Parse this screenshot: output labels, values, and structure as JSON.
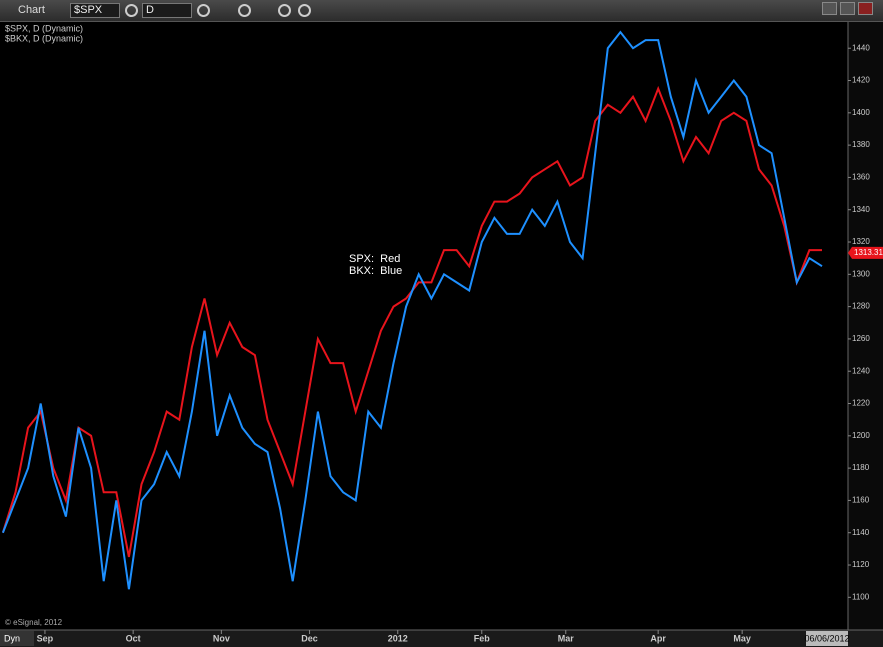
{
  "toolbar": {
    "window_title": "Chart",
    "symbol": "$SPX",
    "interval": "D"
  },
  "chart_data": {
    "type": "line",
    "series_labels": [
      "$SPX, D (Dynamic)",
      "$BKX, D (Dynamic)"
    ],
    "annotations": [
      "SPX:  Red",
      "BKX:  Blue"
    ],
    "copyright": "© eSignal, 2012",
    "mode": "Dyn",
    "cursor_date": "06/06/2012",
    "last_price": 1313.31,
    "x": [
      0,
      3,
      6,
      9,
      12,
      15,
      18,
      21,
      24,
      27,
      30,
      33,
      36,
      39,
      42,
      45,
      48,
      51,
      54,
      57,
      60,
      63,
      66,
      69,
      72,
      75,
      78,
      81,
      84,
      87,
      90,
      93,
      96,
      99,
      102,
      105,
      108,
      111,
      114,
      117,
      120,
      123,
      126,
      129,
      132,
      135,
      138,
      141,
      144,
      147,
      150,
      153,
      156,
      159,
      162,
      165,
      168,
      171,
      174,
      177,
      180,
      183,
      186,
      189,
      192,
      195
    ],
    "series": [
      {
        "name": "SPX",
        "color": "#e8141c",
        "values": [
          1140,
          1165,
          1205,
          1215,
          1180,
          1160,
          1205,
          1200,
          1165,
          1165,
          1125,
          1170,
          1190,
          1215,
          1210,
          1255,
          1285,
          1250,
          1270,
          1255,
          1250,
          1210,
          1190,
          1170,
          1215,
          1260,
          1245,
          1245,
          1215,
          1240,
          1265,
          1280,
          1285,
          1295,
          1295,
          1315,
          1315,
          1305,
          1330,
          1345,
          1345,
          1350,
          1360,
          1365,
          1370,
          1355,
          1360,
          1395,
          1405,
          1400,
          1410,
          1395,
          1415,
          1395,
          1370,
          1385,
          1375,
          1395,
          1400,
          1395,
          1365,
          1355,
          1330,
          1295,
          1315,
          1315
        ]
      },
      {
        "name": "BKX",
        "color": "#1e90ff",
        "values": [
          1140,
          1160,
          1180,
          1220,
          1175,
          1150,
          1205,
          1180,
          1110,
          1160,
          1105,
          1160,
          1170,
          1190,
          1175,
          1215,
          1265,
          1200,
          1225,
          1205,
          1195,
          1190,
          1155,
          1110,
          1160,
          1215,
          1175,
          1165,
          1160,
          1215,
          1205,
          1245,
          1280,
          1300,
          1285,
          1300,
          1295,
          1290,
          1320,
          1335,
          1325,
          1325,
          1340,
          1330,
          1345,
          1320,
          1310,
          1375,
          1440,
          1450,
          1440,
          1445,
          1445,
          1410,
          1385,
          1420,
          1400,
          1410,
          1420,
          1410,
          1380,
          1375,
          1335,
          1295,
          1310,
          1305
        ]
      }
    ],
    "xlim": [
      -0.7,
      201.2
    ],
    "xticks": [
      {
        "value": 10,
        "label": "Sep"
      },
      {
        "value": 31,
        "label": "Oct"
      },
      {
        "value": 52,
        "label": "Nov"
      },
      {
        "value": 73,
        "label": "Dec"
      },
      {
        "value": 94,
        "label": "2012"
      },
      {
        "value": 114,
        "label": "Feb"
      },
      {
        "value": 134,
        "label": "Mar"
      },
      {
        "value": 156,
        "label": "Apr"
      },
      {
        "value": 176,
        "label": "May"
      }
    ],
    "ylim": [
      1081,
      1455
    ],
    "yticks": [
      1100,
      1120,
      1140,
      1160,
      1180,
      1200,
      1220,
      1240,
      1260,
      1280,
      1300,
      1320,
      1340,
      1360,
      1380,
      1400,
      1420,
      1440
    ],
    "grid": false
  }
}
